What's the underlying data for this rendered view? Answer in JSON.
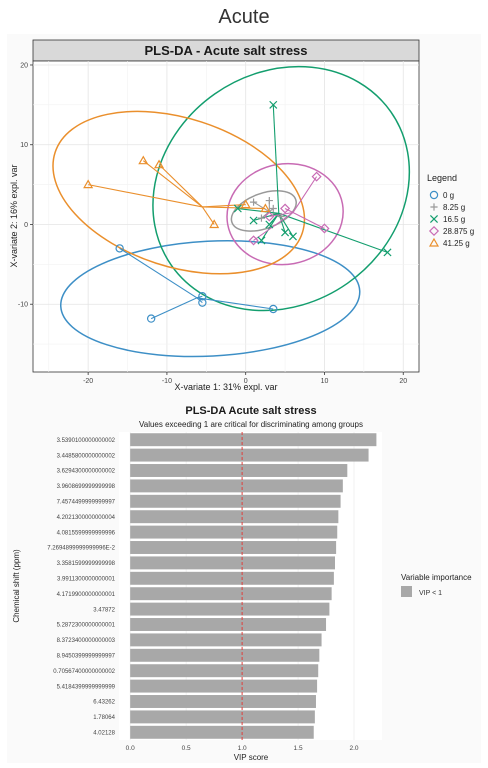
{
  "page": {
    "title": "Acute"
  },
  "chart_data": [
    {
      "type": "scatter",
      "title": "PLS-DA - Acute salt stress",
      "xlabel": "X-variate 1: 31% expl. var",
      "ylabel": "X-variate 2: 16% expl. var",
      "xlim": [
        -27,
        22
      ],
      "ylim": [
        -18.5,
        20.5
      ],
      "xticks": [
        -20,
        -10,
        0,
        10,
        20
      ],
      "yticks": [
        -10,
        0,
        10,
        20
      ],
      "grid": true,
      "legend_title": "Legend",
      "legend_position": "right",
      "series": [
        {
          "name": "0 g",
          "marker": "circle",
          "color": "#3d8fc6",
          "centroid": [
            -6.2,
            -9.2
          ],
          "points": [
            [
              -16,
              -3
            ],
            [
              -12,
              -11.8
            ],
            [
              -5.5,
              -9
            ],
            [
              -5.5,
              -9.8
            ],
            [
              3.5,
              -10.6
            ]
          ],
          "ellipse": {
            "center": [
              -4.5,
              -9.3
            ],
            "rx": 19,
            "ry": 7.2,
            "angle": 3
          }
        },
        {
          "name": "8.25 g",
          "marker": "plus",
          "color": "#999999",
          "centroid": [
            3,
            1.6
          ],
          "points": [
            [
              1,
              2.8
            ],
            [
              2,
              0.8
            ],
            [
              3.5,
              2
            ],
            [
              4.5,
              1
            ],
            [
              3,
              3
            ]
          ],
          "ellipse": {
            "center": [
              2.3,
              1.7
            ],
            "rx": 4.3,
            "ry": 2.2,
            "angle": 20
          }
        },
        {
          "name": "16.5 g",
          "marker": "x",
          "color": "#139e6e",
          "centroid": [
            4.2,
            1.4
          ],
          "points": [
            [
              3.5,
              15
            ],
            [
              18,
              -3.5
            ],
            [
              -1,
              2
            ],
            [
              2,
              -2
            ],
            [
              5,
              -1
            ],
            [
              6,
              -1.5
            ],
            [
              1,
              0.5
            ],
            [
              3,
              0
            ]
          ],
          "ellipse": {
            "center": [
              4.5,
              4.5
            ],
            "rx": 17,
            "ry": 14.5,
            "angle": 35
          }
        },
        {
          "name": "28.875 g",
          "marker": "diamond",
          "color": "#c86bb4",
          "centroid": [
            6,
            1.5
          ],
          "points": [
            [
              9,
              6
            ],
            [
              10,
              -0.5
            ],
            [
              1,
              -2
            ],
            [
              3,
              1
            ],
            [
              5,
              2
            ]
          ],
          "ellipse": {
            "center": [
              5,
              1.3
            ],
            "rx": 7.4,
            "ry": 6.3,
            "angle": 10
          }
        },
        {
          "name": "41.25 g",
          "marker": "triangle",
          "color": "#ea8f2c",
          "centroid": [
            -5.5,
            2.2
          ],
          "points": [
            [
              -20,
              5
            ],
            [
              -13,
              8
            ],
            [
              -11,
              7.5
            ],
            [
              -4,
              0
            ],
            [
              0,
              2.5
            ],
            [
              2.5,
              2
            ]
          ],
          "ellipse": {
            "center": [
              -8.5,
              4
            ],
            "rx": 16.5,
            "ry": 9.3,
            "angle": -18
          }
        }
      ]
    },
    {
      "type": "bar",
      "orientation": "horizontal",
      "title": "PLS-DA Acute salt stress",
      "subtitle": "Values exceeding 1 are critical for discriminating among groups",
      "xlabel": "VIP score",
      "ylabel": "Chemical shift (ppm)",
      "xlim": [
        -0.1,
        2.25
      ],
      "xticks": [
        "0.0",
        "0.5",
        "1.0",
        "1.5",
        "2.0"
      ],
      "reference_line": 1.0,
      "legend_title": "Variable importance",
      "legend_item": "VIP < 1",
      "bar_color": "#a8a8a8",
      "categories": [
        "3.5390100000000002",
        "3.4485800000000002",
        "3.6294300000000002",
        "3.9608699999999998",
        "7.4574499999999997",
        "4.2021300000000004",
        "4.0815599999999996",
        "7.2694899999999996E-2",
        "3.3581599999999998",
        "3.9911300000000001",
        "4.1719900000000001",
        "3.47872",
        "5.2872300000000001",
        "8.3723400000000003",
        "8.9450399999999997",
        "0.70567400000000002",
        "5.4184399999999999",
        "6.43262",
        "1.78064",
        "4.02128"
      ],
      "values": [
        2.2,
        2.13,
        1.94,
        1.9,
        1.88,
        1.86,
        1.85,
        1.84,
        1.83,
        1.82,
        1.8,
        1.78,
        1.75,
        1.71,
        1.69,
        1.68,
        1.67,
        1.66,
        1.65,
        1.64
      ]
    }
  ]
}
